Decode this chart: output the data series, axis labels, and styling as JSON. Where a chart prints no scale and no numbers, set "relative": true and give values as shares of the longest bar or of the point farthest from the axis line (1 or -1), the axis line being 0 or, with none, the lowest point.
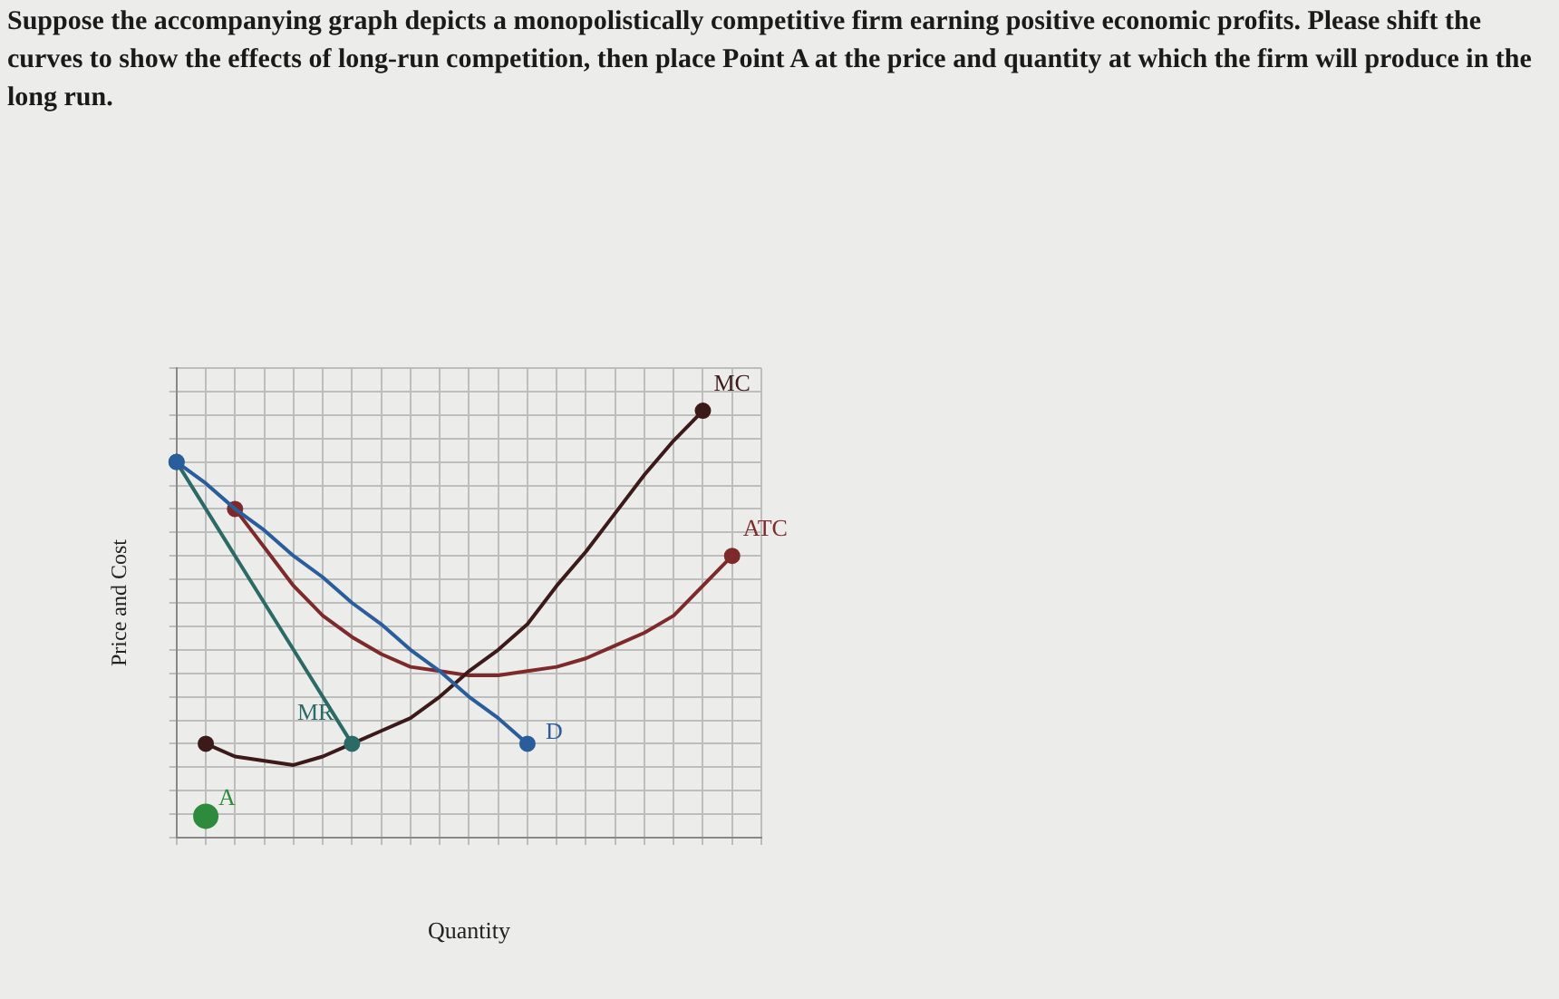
{
  "chart_data": {
    "type": "line",
    "title": "Suppose the accompanying graph depicts a monopolistically competitive firm earning positive economic profits. Please shift the curves to show the effects of long-run competition, then place Point A at the price and quantity at which the firm will produce in the long run.",
    "xlabel": "Quantity",
    "ylabel": "Price and Cost",
    "relative": true,
    "grid": true,
    "categories": [
      null,
      null,
      null,
      null,
      null,
      null,
      null,
      null,
      null,
      null,
      null,
      null,
      null,
      null,
      null,
      null,
      null,
      null,
      null,
      null,
      null
    ],
    "series": [
      {
        "name": "D",
        "color": "#2a5d9c",
        "values": [
          0.88,
          0.83,
          0.77,
          0.72,
          0.66,
          0.61,
          0.55,
          0.5,
          0.44,
          0.39,
          0.33,
          0.28,
          0.22,
          null,
          null,
          null,
          null,
          null,
          null,
          null,
          null
        ]
      },
      {
        "name": "MR",
        "color": "#2b6a66",
        "values": [
          0.88,
          0.77,
          0.66,
          0.55,
          0.44,
          0.33,
          0.22,
          null,
          null,
          null,
          null,
          null,
          null,
          null,
          null,
          null,
          null,
          null,
          null,
          null,
          null
        ]
      },
      {
        "name": "MC",
        "color": "#3d1a1a",
        "values": [
          null,
          0.22,
          0.19,
          0.18,
          0.17,
          0.19,
          0.22,
          0.25,
          0.28,
          0.33,
          0.39,
          0.44,
          0.5,
          0.59,
          0.67,
          0.76,
          0.85,
          0.93,
          1,
          null,
          null
        ]
      },
      {
        "name": "ATC",
        "color": "#7e2a2a",
        "values": [
          null,
          null,
          0.77,
          0.68,
          0.59,
          0.52,
          0.47,
          0.43,
          0.4,
          0.39,
          0.38,
          0.38,
          0.39,
          0.4,
          0.42,
          0.45,
          0.48,
          0.52,
          0.59,
          0.66,
          null
        ]
      },
      {
        "name": "A",
        "color": "#2e8b3e",
        "marker": "circle",
        "values": [
          null,
          0.05,
          null,
          null,
          null,
          null,
          null,
          null,
          null,
          null,
          null,
          null,
          null,
          null,
          null,
          null,
          null,
          null,
          null,
          null,
          null
        ]
      }
    ]
  }
}
